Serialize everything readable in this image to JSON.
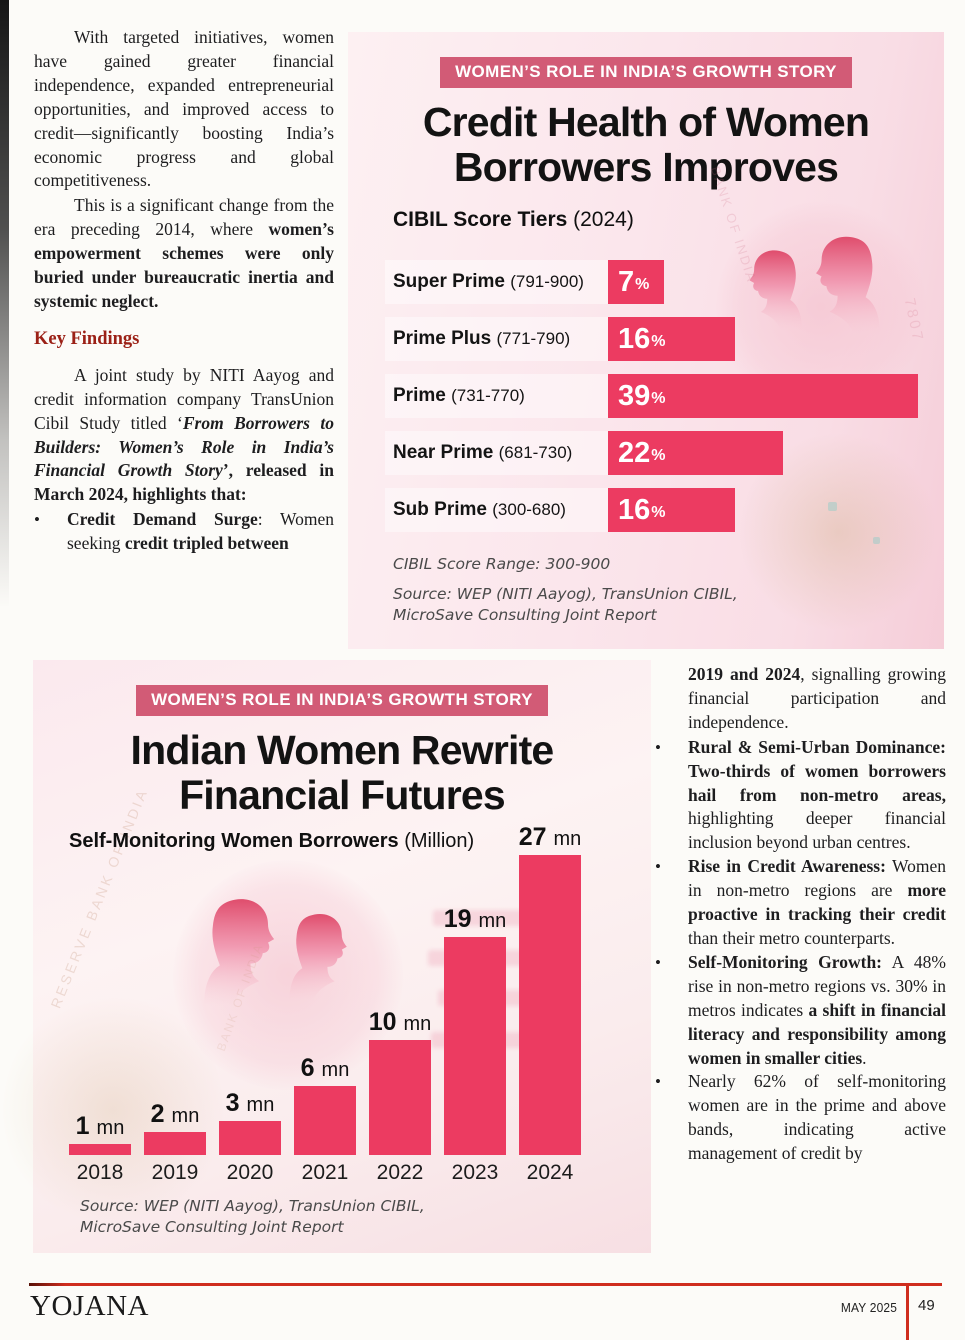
{
  "bullet_glyph": "•",
  "colors": {
    "bar_pink": "#ec3b61",
    "badge_pink": "#d25b76",
    "panel_pink": "#fbe7ec",
    "heading_red": "#9b2016",
    "footer_red": "#cf2d1e"
  },
  "article": {
    "left_column": {
      "para1_runs": [
        {
          "t": "With targeted initiatives, women have gained greater financial independence, expanded entrepreneurial opportunities, and improved access to credit—significantly boosting India’s economic progress and global competitiveness."
        }
      ],
      "para2_runs": [
        {
          "t": "This is a significant change from the era preceding 2014, where "
        },
        {
          "t": "women’s empowerment schemes were only buried under bureaucratic inertia and systemic neglect.",
          "b": 1
        }
      ],
      "heading": "Key Findings",
      "para3_runs": [
        {
          "t": "A joint study by NITI Aayog and credit information company TransUnion Cibil Study titled ‘"
        },
        {
          "t": "From Borrowers to Builders: Women’s Role in India’s Financial Growth Story",
          "b": 1,
          "i": 1
        },
        {
          "t": "’, released in March 2024, highlights that:",
          "b": 1
        }
      ],
      "bullets": [
        {
          "runs": [
            {
              "t": "Credit Demand Surge",
              "b": 1
            },
            {
              "t": ": Women seeking "
            },
            {
              "t": "credit tripled between",
              "b": 1
            }
          ]
        }
      ]
    },
    "right_column": {
      "continuation_runs": [
        {
          "t": "2019 and 2024",
          "b": 1
        },
        {
          "t": ", signalling growing financial participation and independence."
        }
      ],
      "bullets": [
        {
          "runs": [
            {
              "t": "Rural & Semi-Urban Dominance: Two-thirds of women borrowers hail from non-metro areas,",
              "b": 1
            },
            {
              "t": " highlighting deeper financial inclusion beyond urban centres."
            }
          ]
        },
        {
          "runs": [
            {
              "t": "Rise in Credit Awareness:",
              "b": 1
            },
            {
              "t": " Women in non-metro regions are "
            },
            {
              "t": "more proactive in tracking their credit",
              "b": 1
            },
            {
              "t": " than their metro counterparts."
            }
          ]
        },
        {
          "runs": [
            {
              "t": "Self-Monitoring Growth:",
              "b": 1
            },
            {
              "t": " A 48% rise in non-metro regions vs. 30% in metros indicates "
            },
            {
              "t": "a shift in financial literacy and responsibility among women in smaller cities",
              "b": 1
            },
            {
              "t": "."
            }
          ]
        },
        {
          "runs": [
            {
              "t": "Nearly 62% of self-monitoring women are in the prime and above bands, indicating active management of credit by"
            }
          ]
        }
      ]
    }
  },
  "infographic_top": {
    "badge": "WOMEN’S ROLE IN INDIA’S GROWTH STORY",
    "title_line1": "Credit Health of Women",
    "title_line2": "Borrowers Improves",
    "subtitle_bold": "CIBIL Score Tiers",
    "subtitle_suffix": " (2024)",
    "unit": "%",
    "tiers": [
      {
        "label": "Super Prime",
        "range": "(791-900)",
        "value": 7
      },
      {
        "label": "Prime Plus",
        "range": "(771-790)",
        "value": 16
      },
      {
        "label": "Prime",
        "range": "(731-770)",
        "value": 39
      },
      {
        "label": "Near Prime",
        "range": "(681-730)",
        "value": 22
      },
      {
        "label": "Sub Prime",
        "range": "(300-680)",
        "value": 16
      }
    ],
    "range_note": "CIBIL Score Range: 300-900",
    "source_line1": "Source: WEP (NITI Aayog), TransUnion CIBIL,",
    "source_line2": "MicroSave Consulting Joint Report"
  },
  "infographic_bottom": {
    "badge": "WOMEN’S ROLE IN INDIA’S GROWTH STORY",
    "title_line1": "Indian Women Rewrite",
    "title_line2": "Financial Futures",
    "subtitle_bold": "Self-Monitoring Women Borrowers",
    "subtitle_suffix": " (Million)",
    "unit": "mn",
    "bars": [
      {
        "year": "2018",
        "value": 1
      },
      {
        "year": "2019",
        "value": 2
      },
      {
        "year": "2020",
        "value": 3
      },
      {
        "year": "2021",
        "value": 6
      },
      {
        "year": "2022",
        "value": 10
      },
      {
        "year": "2023",
        "value": 19
      },
      {
        "year": "2024",
        "value": 27
      }
    ],
    "source_line1": "Source: WEP (NITI Aayog), TransUnion CIBIL,",
    "source_line2": "MicroSave Consulting Joint Report"
  },
  "decorations": {
    "watermark_text1": "RESERVE BANK OF INDIA",
    "watermark_text2": "BANK OF INDIA"
  },
  "footer": {
    "publication": "YOJANA",
    "issue": "MAY 2025",
    "page_number": "49"
  },
  "chart_data": [
    {
      "type": "bar",
      "orientation": "horizontal",
      "title": "Credit Health of Women Borrowers Improves",
      "subtitle": "CIBIL Score Tiers (2024)",
      "categories": [
        "Super Prime (791-900)",
        "Prime Plus (771-790)",
        "Prime (731-770)",
        "Near Prime (681-730)",
        "Sub Prime (300-680)"
      ],
      "values": [
        7,
        16,
        39,
        22,
        16
      ],
      "unit": "%",
      "xlim": [
        0,
        39
      ],
      "grid": false,
      "legend": "none",
      "annotations": [
        "CIBIL Score Range: 300-900",
        "Source: WEP (NITI Aayog), TransUnion CIBIL, MicroSave Consulting Joint Report"
      ]
    },
    {
      "type": "bar",
      "orientation": "vertical",
      "title": "Indian Women Rewrite Financial Futures",
      "subtitle": "Self-Monitoring Women Borrowers (Million)",
      "categories": [
        "2018",
        "2019",
        "2020",
        "2021",
        "2022",
        "2023",
        "2024"
      ],
      "values": [
        1,
        2,
        3,
        6,
        10,
        19,
        27
      ],
      "unit": "mn",
      "ylim": [
        0,
        27
      ],
      "grid": false,
      "legend": "none",
      "annotations": [
        "Source: WEP (NITI Aayog), TransUnion CIBIL, MicroSave Consulting Joint Report"
      ]
    }
  ]
}
